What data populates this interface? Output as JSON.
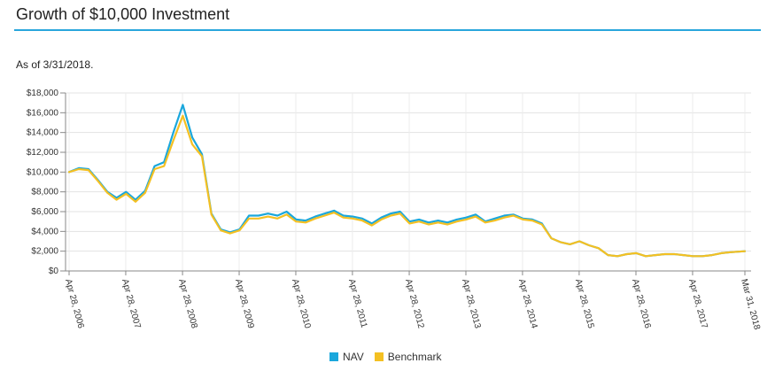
{
  "header": {
    "title": "Growth of $10,000 Investment",
    "as_of": "As of 3/31/2018."
  },
  "legend": {
    "items": [
      {
        "label": "NAV",
        "color": "#1aa7dc"
      },
      {
        "label": "Benchmark",
        "color": "#f4c022"
      }
    ]
  },
  "chart_data": {
    "type": "line",
    "title": "",
    "xlabel": "",
    "ylabel": "",
    "ylim": [
      0,
      18000
    ],
    "yticks": [
      0,
      2000,
      4000,
      6000,
      8000,
      10000,
      12000,
      14000,
      16000,
      18000
    ],
    "ytick_labels": [
      "$0",
      "$2,000",
      "$4,000",
      "$6,000",
      "$8,000",
      "$10,000",
      "$12,000",
      "$14,000",
      "$16,000",
      "$18,000"
    ],
    "xtick_labels": [
      "Apr 28, 2006",
      "Apr 28, 2007",
      "Apr 28, 2008",
      "Apr 28, 2009",
      "Apr 28, 2010",
      "Apr 28, 2011",
      "Apr 28, 2012",
      "Apr 28, 2013",
      "Apr 28, 2014",
      "Apr 28, 2015",
      "Apr 28, 2016",
      "Apr 28, 2017",
      "Mar 31, 2018"
    ],
    "grid": true,
    "legend_position": "bottom",
    "x_dates": [
      "2006-04-28",
      "2006-06-30",
      "2006-08-31",
      "2006-10-31",
      "2006-12-31",
      "2007-02-28",
      "2007-04-30",
      "2007-06-30",
      "2007-08-31",
      "2007-10-31",
      "2007-12-31",
      "2008-02-29",
      "2008-04-30",
      "2008-06-30",
      "2008-08-31",
      "2008-10-31",
      "2008-12-31",
      "2009-02-28",
      "2009-04-30",
      "2009-06-30",
      "2009-08-31",
      "2009-10-31",
      "2009-12-31",
      "2010-02-28",
      "2010-04-30",
      "2010-06-30",
      "2010-08-31",
      "2010-10-31",
      "2010-12-31",
      "2011-02-28",
      "2011-04-30",
      "2011-06-30",
      "2011-08-31",
      "2011-10-31",
      "2011-12-31",
      "2012-02-29",
      "2012-04-30",
      "2012-06-30",
      "2012-08-31",
      "2012-10-31",
      "2012-12-31",
      "2013-02-28",
      "2013-04-30",
      "2013-06-30",
      "2013-08-31",
      "2013-10-31",
      "2013-12-31",
      "2014-02-28",
      "2014-04-30",
      "2014-06-30",
      "2014-08-31",
      "2014-10-31",
      "2014-12-31",
      "2015-02-28",
      "2015-04-30",
      "2015-06-30",
      "2015-08-31",
      "2015-10-31",
      "2015-12-31",
      "2016-02-29",
      "2016-04-30",
      "2016-06-30",
      "2016-08-31",
      "2016-10-31",
      "2016-12-31",
      "2017-02-28",
      "2017-04-30",
      "2017-06-30",
      "2017-08-31",
      "2017-10-31",
      "2017-12-31",
      "2018-03-31"
    ],
    "series": [
      {
        "name": "NAV",
        "color": "#1aa7dc",
        "values": [
          10000,
          10400,
          10300,
          9200,
          8000,
          7400,
          8000,
          7200,
          8100,
          10600,
          11000,
          14000,
          16800,
          13500,
          11800,
          5800,
          4200,
          3900,
          4200,
          5600,
          5600,
          5800,
          5600,
          6000,
          5200,
          5100,
          5500,
          5800,
          6100,
          5600,
          5500,
          5300,
          4800,
          5400,
          5800,
          6000,
          5000,
          5200,
          4900,
          5100,
          4900,
          5200,
          5400,
          5700,
          5000,
          5300,
          5600,
          5700,
          5300,
          5200,
          4800,
          3300,
          2900,
          2700,
          3000,
          2600,
          2300,
          1600,
          1500,
          1700,
          1800,
          1500,
          1600,
          1700,
          1700,
          1600,
          1500,
          1500,
          1600,
          1800,
          1900,
          2000
        ]
      },
      {
        "name": "Benchmark",
        "color": "#f4c022",
        "values": [
          10000,
          10300,
          10200,
          9100,
          7900,
          7200,
          7800,
          7000,
          7900,
          10300,
          10600,
          13200,
          15700,
          12800,
          11600,
          5700,
          4100,
          3800,
          4100,
          5300,
          5300,
          5500,
          5300,
          5700,
          5000,
          4900,
          5300,
          5600,
          5900,
          5400,
          5300,
          5100,
          4600,
          5200,
          5600,
          5800,
          4800,
          5000,
          4700,
          4900,
          4700,
          5000,
          5200,
          5500,
          4900,
          5100,
          5400,
          5600,
          5200,
          5100,
          4700,
          3300,
          2900,
          2700,
          3000,
          2600,
          2300,
          1600,
          1500,
          1700,
          1800,
          1500,
          1600,
          1700,
          1700,
          1600,
          1500,
          1500,
          1600,
          1800,
          1900,
          2000
        ]
      }
    ]
  }
}
